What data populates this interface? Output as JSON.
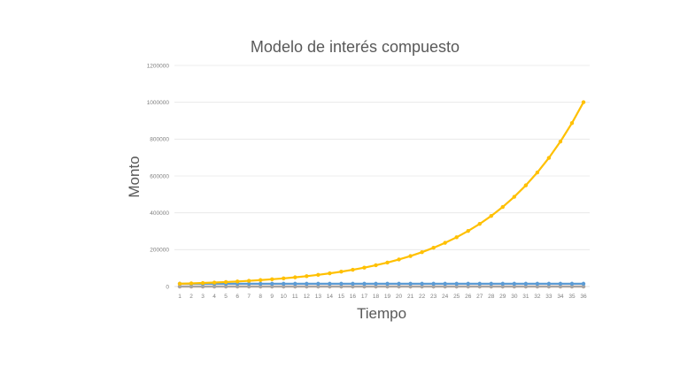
{
  "chart_data": {
    "type": "line",
    "title": "Modelo de interés compuesto",
    "xlabel": "Tiempo",
    "ylabel": "Monto",
    "ylim": [
      0,
      1200000
    ],
    "yticks": [
      "0",
      "200000",
      "400000",
      "600000",
      "800000",
      "1000000",
      "1200000"
    ],
    "x": [
      1,
      2,
      3,
      4,
      5,
      6,
      7,
      8,
      9,
      10,
      11,
      12,
      13,
      14,
      15,
      16,
      17,
      18,
      19,
      20,
      21,
      22,
      23,
      24,
      25,
      26,
      27,
      28,
      29,
      30,
      31,
      32,
      33,
      34,
      35,
      36
    ],
    "grid": true,
    "legend": "none",
    "series": [
      {
        "color": "#5b9bd5",
        "values": [
          15000,
          15000,
          15000,
          15000,
          15000,
          15000,
          15000,
          15000,
          15000,
          15000,
          15000,
          15000,
          15000,
          15000,
          15000,
          15000,
          15000,
          15000,
          15000,
          15000,
          15000,
          15000,
          15000,
          15000,
          15000,
          15000,
          15000,
          15000,
          15000,
          15000,
          15000,
          15000,
          15000,
          15000,
          15000,
          15000
        ]
      },
      {
        "color": "#ed7d31",
        "values": [
          0,
          0,
          0,
          0,
          0,
          0,
          0,
          0,
          0,
          0,
          0,
          0,
          0,
          0,
          0,
          0,
          0,
          0,
          0,
          0,
          0,
          0,
          0,
          0,
          0,
          0,
          0,
          0,
          0,
          0,
          0,
          0,
          0,
          0,
          0,
          0
        ]
      },
      {
        "color": "#a5a5a5",
        "values": [
          0,
          0,
          0,
          0,
          0,
          0,
          0,
          0,
          0,
          0,
          0,
          0,
          0,
          0,
          0,
          0,
          0,
          0,
          0,
          0,
          0,
          0,
          0,
          0,
          0,
          0,
          0,
          0,
          0,
          0,
          0,
          0,
          0,
          0,
          0,
          0
        ]
      },
      {
        "color": "#ffc000",
        "values": [
          15000,
          16913,
          19069,
          21500,
          24241,
          27332,
          30817,
          34746,
          39176,
          44171,
          49803,
          56153,
          63312,
          71385,
          80486,
          90748,
          102318,
          115364,
          130073,
          146657,
          165356,
          186439,
          210210,
          237012,
          267231,
          301303,
          339719,
          383033,
          431870,
          486933,
          549017,
          619017,
          697942,
          786930,
          887264,
          1000390
        ]
      }
    ]
  }
}
